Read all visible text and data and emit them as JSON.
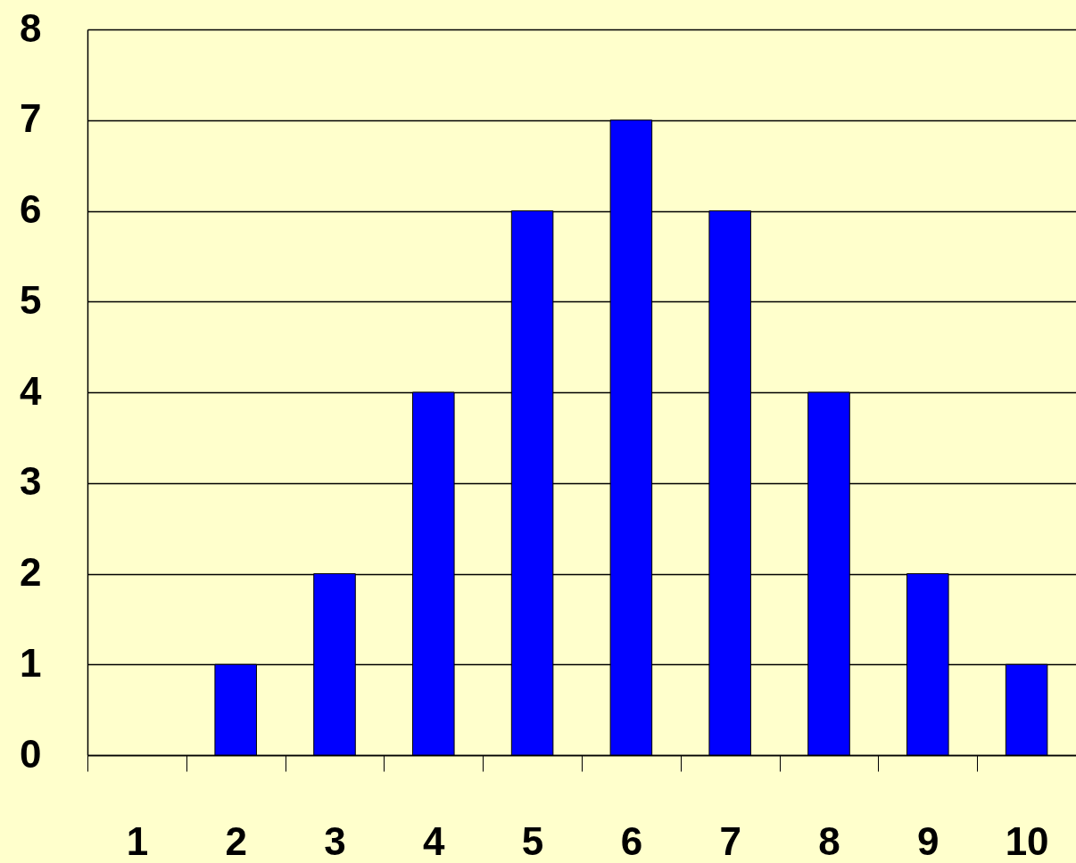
{
  "chart_data": {
    "type": "bar",
    "categories": [
      "1",
      "2",
      "3",
      "4",
      "5",
      "6",
      "7",
      "8",
      "9",
      "10"
    ],
    "values": [
      0,
      1,
      2,
      4,
      6,
      7,
      6,
      4,
      2,
      1
    ],
    "color": "#0000ff",
    "ylim": [
      0,
      8
    ],
    "yticks": [
      0,
      1,
      2,
      3,
      4,
      5,
      6,
      7,
      8
    ],
    "grid": "y"
  }
}
